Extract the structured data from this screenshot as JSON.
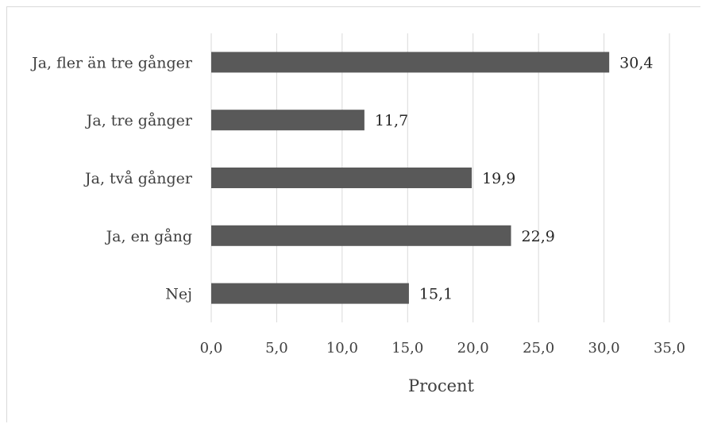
{
  "chart_data": {
    "type": "bar",
    "orientation": "horizontal",
    "categories": [
      "Nej",
      "Ja, en gång",
      "Ja, två gånger",
      "Ja, tre gånger",
      "Ja, fler än tre gånger"
    ],
    "values": [
      15.1,
      22.9,
      19.9,
      11.7,
      30.4
    ],
    "data_labels": [
      "15,1",
      "22,9",
      "19,9",
      "11,7",
      "30,4"
    ],
    "xlabel": "Procent",
    "ylabel": "",
    "title": "",
    "xlim": [
      0,
      35
    ],
    "xticks": [
      0,
      5,
      10,
      15,
      20,
      25,
      30,
      35
    ],
    "xtick_labels": [
      "0,0",
      "5,0",
      "10,0",
      "15,0",
      "20,0",
      "25,0",
      "30,0",
      "35,0"
    ],
    "grid": "vertical",
    "legend": "none",
    "bar_color": "#595959",
    "grid_color": "#d9d9d9"
  }
}
